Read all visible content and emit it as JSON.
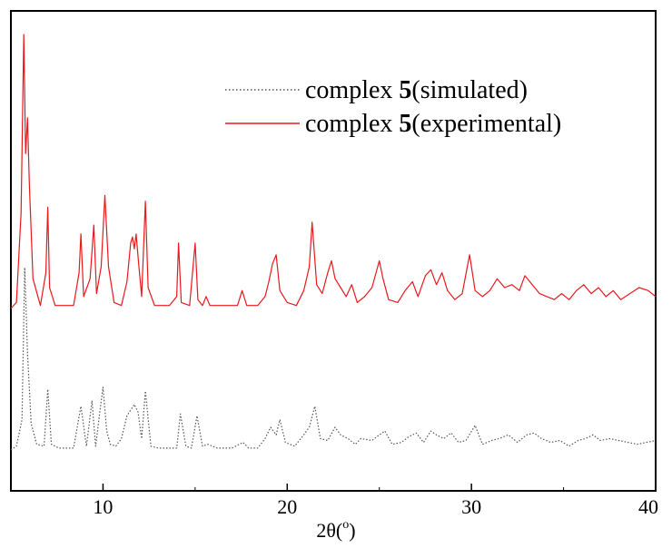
{
  "chart_data": {
    "type": "line",
    "xlabel": "2θ(",
    "xlabel_sup": "o",
    "xlabel_end": ")",
    "xlim": [
      5,
      40
    ],
    "xticks": [
      10,
      20,
      30,
      40
    ],
    "tick_labels": [
      "10",
      "20",
      "30",
      "40"
    ],
    "yaxis_ticks": false,
    "legend_position": "top-right",
    "series": [
      {
        "name": "complex 5(simulated)",
        "name_prefix": "complex ",
        "name_bold": "5",
        "name_suffix": "(simulated)",
        "color": "#555555",
        "style": "dotted",
        "baseline": 0.04,
        "x": [
          5.0,
          5.3,
          5.6,
          5.75,
          5.9,
          6.1,
          6.4,
          6.8,
          7.0,
          7.2,
          7.6,
          8.4,
          8.8,
          9.1,
          9.4,
          9.6,
          9.8,
          10.0,
          10.2,
          10.4,
          10.7,
          11.0,
          11.3,
          11.5,
          11.7,
          11.9,
          12.1,
          12.3,
          12.6,
          13.0,
          13.6,
          14.0,
          14.2,
          14.5,
          14.8,
          15.1,
          15.4,
          15.7,
          16.2,
          17.0,
          17.6,
          17.9,
          18.4,
          18.8,
          19.1,
          19.4,
          19.6,
          19.9,
          20.4,
          20.9,
          21.2,
          21.5,
          21.8,
          22.2,
          22.6,
          22.9,
          23.3,
          23.7,
          24.0,
          24.6,
          25.0,
          25.3,
          25.7,
          26.2,
          26.6,
          27.0,
          27.4,
          27.8,
          28.1,
          28.5,
          28.9,
          29.3,
          29.7,
          30.2,
          30.6,
          31.1,
          31.5,
          32.0,
          32.5,
          33.0,
          33.4,
          33.8,
          34.3,
          34.8,
          35.3,
          35.8,
          36.2,
          36.6,
          37.0,
          37.5,
          38.0,
          38.5,
          39.0,
          39.5,
          40.0
        ],
        "y": [
          0.04,
          0.06,
          0.2,
          1.0,
          0.55,
          0.18,
          0.07,
          0.06,
          0.36,
          0.07,
          0.05,
          0.05,
          0.27,
          0.06,
          0.3,
          0.06,
          0.22,
          0.37,
          0.14,
          0.07,
          0.06,
          0.1,
          0.22,
          0.25,
          0.28,
          0.24,
          0.1,
          0.35,
          0.06,
          0.05,
          0.05,
          0.05,
          0.23,
          0.06,
          0.05,
          0.22,
          0.06,
          0.07,
          0.05,
          0.05,
          0.08,
          0.05,
          0.05,
          0.1,
          0.16,
          0.12,
          0.2,
          0.08,
          0.06,
          0.12,
          0.16,
          0.27,
          0.1,
          0.09,
          0.16,
          0.12,
          0.1,
          0.07,
          0.1,
          0.09,
          0.12,
          0.14,
          0.07,
          0.08,
          0.11,
          0.13,
          0.08,
          0.14,
          0.12,
          0.1,
          0.13,
          0.08,
          0.09,
          0.17,
          0.07,
          0.09,
          0.1,
          0.12,
          0.08,
          0.12,
          0.13,
          0.1,
          0.08,
          0.09,
          0.06,
          0.09,
          0.1,
          0.12,
          0.09,
          0.1,
          0.09,
          0.08,
          0.07,
          0.08,
          0.09
        ]
      },
      {
        "name": "complex 5(experimental)",
        "name_prefix": "complex ",
        "name_bold": "5",
        "name_suffix": "(experimental)",
        "color": "#e8181c",
        "style": "solid",
        "baseline": 0.08,
        "x": [
          5.0,
          5.3,
          5.55,
          5.7,
          5.8,
          5.9,
          6.0,
          6.2,
          6.6,
          6.9,
          7.0,
          7.1,
          7.4,
          8.4,
          8.7,
          8.8,
          8.95,
          9.3,
          9.5,
          9.65,
          9.9,
          10.1,
          10.3,
          10.6,
          11.0,
          11.3,
          11.5,
          11.6,
          11.7,
          11.8,
          11.95,
          12.1,
          12.3,
          12.45,
          12.8,
          13.6,
          14.0,
          14.1,
          14.25,
          14.7,
          15.0,
          15.15,
          15.4,
          15.6,
          15.8,
          16.5,
          17.3,
          17.55,
          17.8,
          18.4,
          18.8,
          19.0,
          19.2,
          19.4,
          19.6,
          20.0,
          20.5,
          20.9,
          21.2,
          21.35,
          21.6,
          21.9,
          22.2,
          22.4,
          22.6,
          22.9,
          23.2,
          23.5,
          23.8,
          24.2,
          24.6,
          25.0,
          25.2,
          25.5,
          26.0,
          26.4,
          26.8,
          27.1,
          27.5,
          27.8,
          28.1,
          28.4,
          28.7,
          29.1,
          29.5,
          29.9,
          30.2,
          30.6,
          31.0,
          31.4,
          31.8,
          32.2,
          32.6,
          32.9,
          33.3,
          33.7,
          34.1,
          34.5,
          34.9,
          35.3,
          35.7,
          36.1,
          36.5,
          36.9,
          37.3,
          37.7,
          38.1,
          38.6,
          39.1,
          39.6,
          40.0
        ],
        "y": [
          0.08,
          0.1,
          0.4,
          1.0,
          0.6,
          0.72,
          0.5,
          0.18,
          0.09,
          0.2,
          0.42,
          0.15,
          0.09,
          0.09,
          0.2,
          0.33,
          0.12,
          0.18,
          0.36,
          0.13,
          0.22,
          0.46,
          0.22,
          0.1,
          0.09,
          0.17,
          0.3,
          0.32,
          0.28,
          0.33,
          0.22,
          0.12,
          0.44,
          0.15,
          0.09,
          0.09,
          0.12,
          0.3,
          0.1,
          0.09,
          0.3,
          0.11,
          0.09,
          0.12,
          0.09,
          0.09,
          0.09,
          0.14,
          0.09,
          0.09,
          0.12,
          0.17,
          0.23,
          0.26,
          0.14,
          0.1,
          0.09,
          0.14,
          0.22,
          0.37,
          0.16,
          0.13,
          0.2,
          0.24,
          0.18,
          0.15,
          0.12,
          0.16,
          0.1,
          0.12,
          0.15,
          0.24,
          0.18,
          0.11,
          0.1,
          0.14,
          0.17,
          0.12,
          0.19,
          0.21,
          0.16,
          0.2,
          0.14,
          0.11,
          0.13,
          0.26,
          0.14,
          0.12,
          0.14,
          0.18,
          0.15,
          0.16,
          0.14,
          0.19,
          0.16,
          0.13,
          0.12,
          0.11,
          0.13,
          0.11,
          0.14,
          0.16,
          0.13,
          0.15,
          0.12,
          0.14,
          0.11,
          0.13,
          0.15,
          0.14,
          0.12
        ]
      }
    ]
  }
}
